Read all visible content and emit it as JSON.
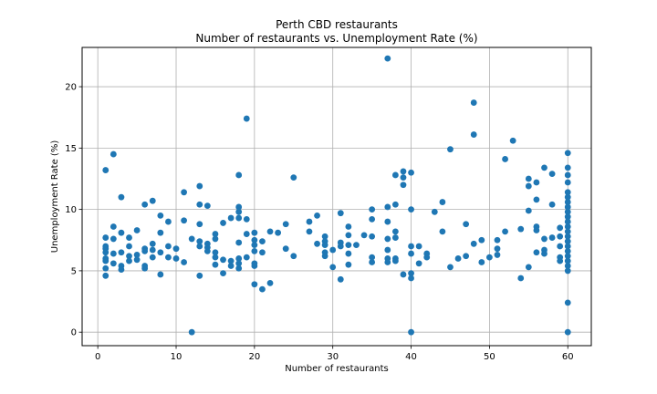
{
  "chart_data": {
    "type": "scatter",
    "title": "Perth CBD restaurants",
    "subtitle": "Number of restaurants vs. Unemployment Rate (%)",
    "xlabel": "Number of restaurants",
    "ylabel": "Unemployment Rate (%)",
    "xlim": [
      -2,
      63
    ],
    "ylim": [
      -1.1,
      23.2
    ],
    "xticks": [
      0,
      10,
      20,
      30,
      40,
      50,
      60
    ],
    "yticks": [
      0,
      5,
      10,
      15,
      20
    ],
    "grid": true,
    "marker_color": "#1f77b4",
    "series": [
      {
        "points": [
          [
            1,
            13.2
          ],
          [
            1,
            7.7
          ],
          [
            1,
            7.0
          ],
          [
            1,
            6.8
          ],
          [
            1,
            6.5
          ],
          [
            1,
            6.0
          ],
          [
            1,
            5.8
          ],
          [
            1,
            5.2
          ],
          [
            1,
            4.6
          ],
          [
            2,
            14.5
          ],
          [
            2,
            8.6
          ],
          [
            2,
            7.6
          ],
          [
            2,
            6.4
          ],
          [
            2,
            5.6
          ],
          [
            3,
            11.0
          ],
          [
            3,
            8.1
          ],
          [
            3,
            6.5
          ],
          [
            3,
            5.4
          ],
          [
            3,
            5.1
          ],
          [
            4,
            7.7
          ],
          [
            4,
            7.0
          ],
          [
            4,
            6.2
          ],
          [
            4,
            5.8
          ],
          [
            5,
            8.3
          ],
          [
            5,
            6.3
          ],
          [
            5,
            5.9
          ],
          [
            6,
            10.4
          ],
          [
            6,
            6.8
          ],
          [
            6,
            6.6
          ],
          [
            6,
            5.4
          ],
          [
            6,
            5.2
          ],
          [
            7,
            10.7
          ],
          [
            7,
            7.2
          ],
          [
            7,
            6.7
          ],
          [
            7,
            6.1
          ],
          [
            8,
            9.5
          ],
          [
            8,
            8.1
          ],
          [
            8,
            6.5
          ],
          [
            8,
            4.7
          ],
          [
            9,
            9.0
          ],
          [
            9,
            7.0
          ],
          [
            9,
            6.1
          ],
          [
            10,
            6.8
          ],
          [
            10,
            6.0
          ],
          [
            11,
            11.4
          ],
          [
            11,
            9.1
          ],
          [
            11,
            5.7
          ],
          [
            12,
            0.0
          ],
          [
            12,
            7.6
          ],
          [
            13,
            11.9
          ],
          [
            13,
            10.4
          ],
          [
            13,
            8.8
          ],
          [
            13,
            7.4
          ],
          [
            13,
            7.0
          ],
          [
            13,
            4.6
          ],
          [
            14,
            10.3
          ],
          [
            14,
            7.2
          ],
          [
            14,
            6.9
          ],
          [
            14,
            6.6
          ],
          [
            15,
            8.0
          ],
          [
            15,
            7.6
          ],
          [
            15,
            6.5
          ],
          [
            15,
            6.1
          ],
          [
            15,
            5.5
          ],
          [
            16,
            8.9
          ],
          [
            16,
            5.9
          ],
          [
            16,
            4.8
          ],
          [
            17,
            9.3
          ],
          [
            17,
            5.8
          ],
          [
            17,
            5.4
          ],
          [
            18,
            12.8
          ],
          [
            18,
            10.2
          ],
          [
            18,
            9.8
          ],
          [
            18,
            9.3
          ],
          [
            18,
            7.3
          ],
          [
            18,
            6.0
          ],
          [
            18,
            5.6
          ],
          [
            18,
            5.2
          ],
          [
            19,
            17.4
          ],
          [
            19,
            9.2
          ],
          [
            19,
            8.0
          ],
          [
            19,
            6.1
          ],
          [
            20,
            8.1
          ],
          [
            20,
            7.5
          ],
          [
            20,
            7.1
          ],
          [
            20,
            6.6
          ],
          [
            20,
            5.6
          ],
          [
            20,
            5.4
          ],
          [
            20,
            3.9
          ],
          [
            21,
            7.4
          ],
          [
            21,
            6.5
          ],
          [
            21,
            3.5
          ],
          [
            22,
            8.2
          ],
          [
            22,
            4.0
          ],
          [
            23,
            8.1
          ],
          [
            24,
            8.8
          ],
          [
            24,
            6.8
          ],
          [
            25,
            12.6
          ],
          [
            25,
            6.2
          ],
          [
            27,
            9.0
          ],
          [
            27,
            8.2
          ],
          [
            28,
            9.5
          ],
          [
            28,
            7.2
          ],
          [
            29,
            7.8
          ],
          [
            29,
            7.4
          ],
          [
            29,
            7.1
          ],
          [
            29,
            6.5
          ],
          [
            29,
            6.2
          ],
          [
            30,
            6.7
          ],
          [
            30,
            5.3
          ],
          [
            31,
            9.7
          ],
          [
            31,
            7.3
          ],
          [
            31,
            7.0
          ],
          [
            31,
            4.3
          ],
          [
            32,
            8.6
          ],
          [
            32,
            7.9
          ],
          [
            32,
            7.1
          ],
          [
            32,
            6.4
          ],
          [
            32,
            5.5
          ],
          [
            33,
            7.1
          ],
          [
            34,
            7.9
          ],
          [
            35,
            10.0
          ],
          [
            35,
            9.2
          ],
          [
            35,
            7.8
          ],
          [
            35,
            6.1
          ],
          [
            35,
            5.7
          ],
          [
            37,
            22.3
          ],
          [
            37,
            10.2
          ],
          [
            37,
            9.0
          ],
          [
            37,
            7.6
          ],
          [
            37,
            6.7
          ],
          [
            37,
            6.0
          ],
          [
            37,
            5.7
          ],
          [
            38,
            12.8
          ],
          [
            38,
            10.4
          ],
          [
            38,
            8.2
          ],
          [
            38,
            7.7
          ],
          [
            38,
            6.0
          ],
          [
            38,
            5.8
          ],
          [
            39,
            13.1
          ],
          [
            39,
            12.6
          ],
          [
            39,
            12.0
          ],
          [
            39,
            4.7
          ],
          [
            40,
            13.0
          ],
          [
            40,
            10.0
          ],
          [
            40,
            7.0
          ],
          [
            40,
            6.4
          ],
          [
            40,
            4.8
          ],
          [
            40,
            4.4
          ],
          [
            40,
            0.0
          ],
          [
            41,
            7.0
          ],
          [
            41,
            5.6
          ],
          [
            42,
            6.4
          ],
          [
            42,
            6.1
          ],
          [
            43,
            9.8
          ],
          [
            44,
            10.6
          ],
          [
            44,
            8.2
          ],
          [
            45,
            14.9
          ],
          [
            45,
            5.3
          ],
          [
            46,
            6.0
          ],
          [
            47,
            8.8
          ],
          [
            47,
            6.2
          ],
          [
            48,
            18.7
          ],
          [
            48,
            16.1
          ],
          [
            48,
            7.2
          ],
          [
            49,
            7.5
          ],
          [
            49,
            5.7
          ],
          [
            50,
            6.1
          ],
          [
            51,
            7.5
          ],
          [
            51,
            6.8
          ],
          [
            51,
            6.3
          ],
          [
            52,
            14.1
          ],
          [
            52,
            8.2
          ],
          [
            53,
            15.6
          ],
          [
            54,
            8.4
          ],
          [
            54,
            4.4
          ],
          [
            55,
            12.5
          ],
          [
            55,
            11.9
          ],
          [
            55,
            9.9
          ],
          [
            55,
            5.3
          ],
          [
            56,
            12.2
          ],
          [
            56,
            10.8
          ],
          [
            56,
            8.6
          ],
          [
            56,
            8.3
          ],
          [
            56,
            6.5
          ],
          [
            57,
            13.4
          ],
          [
            57,
            7.6
          ],
          [
            57,
            6.7
          ],
          [
            57,
            6.4
          ],
          [
            58,
            12.9
          ],
          [
            58,
            10.4
          ],
          [
            58,
            7.7
          ],
          [
            59,
            8.5
          ],
          [
            59,
            7.8
          ],
          [
            59,
            7.0
          ],
          [
            59,
            6.1
          ],
          [
            59,
            5.8
          ],
          [
            60,
            14.6
          ],
          [
            60,
            13.4
          ],
          [
            60,
            12.8
          ],
          [
            60,
            12.2
          ],
          [
            60,
            11.4
          ],
          [
            60,
            11.0
          ],
          [
            60,
            10.6
          ],
          [
            60,
            10.2
          ],
          [
            60,
            9.8
          ],
          [
            60,
            9.4
          ],
          [
            60,
            9.0
          ],
          [
            60,
            8.6
          ],
          [
            60,
            8.2
          ],
          [
            60,
            7.8
          ],
          [
            60,
            7.4
          ],
          [
            60,
            7.0
          ],
          [
            60,
            6.6
          ],
          [
            60,
            6.2
          ],
          [
            60,
            5.8
          ],
          [
            60,
            5.4
          ],
          [
            60,
            5.0
          ],
          [
            60,
            2.4
          ],
          [
            60,
            0.0
          ]
        ]
      }
    ]
  }
}
